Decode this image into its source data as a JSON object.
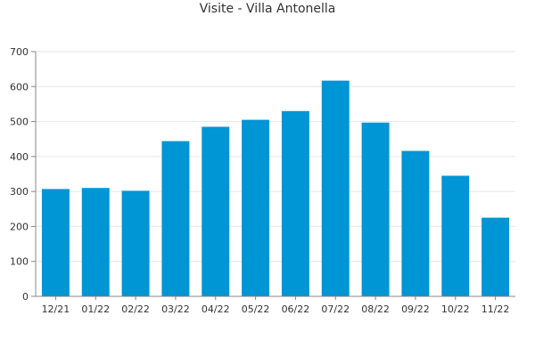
{
  "chart_data": {
    "type": "bar",
    "title": "Visite - Villa Antonella",
    "categories": [
      "12/21",
      "01/22",
      "02/22",
      "03/22",
      "04/22",
      "05/22",
      "06/22",
      "07/22",
      "08/22",
      "09/22",
      "10/22",
      "11/22"
    ],
    "values": [
      307,
      310,
      302,
      444,
      485,
      505,
      530,
      617,
      497,
      416,
      345,
      225
    ],
    "ylim": [
      0,
      700
    ],
    "yticks": [
      0,
      100,
      200,
      300,
      400,
      500,
      600,
      700
    ],
    "grid": true,
    "bar_color": "#0095d4"
  }
}
